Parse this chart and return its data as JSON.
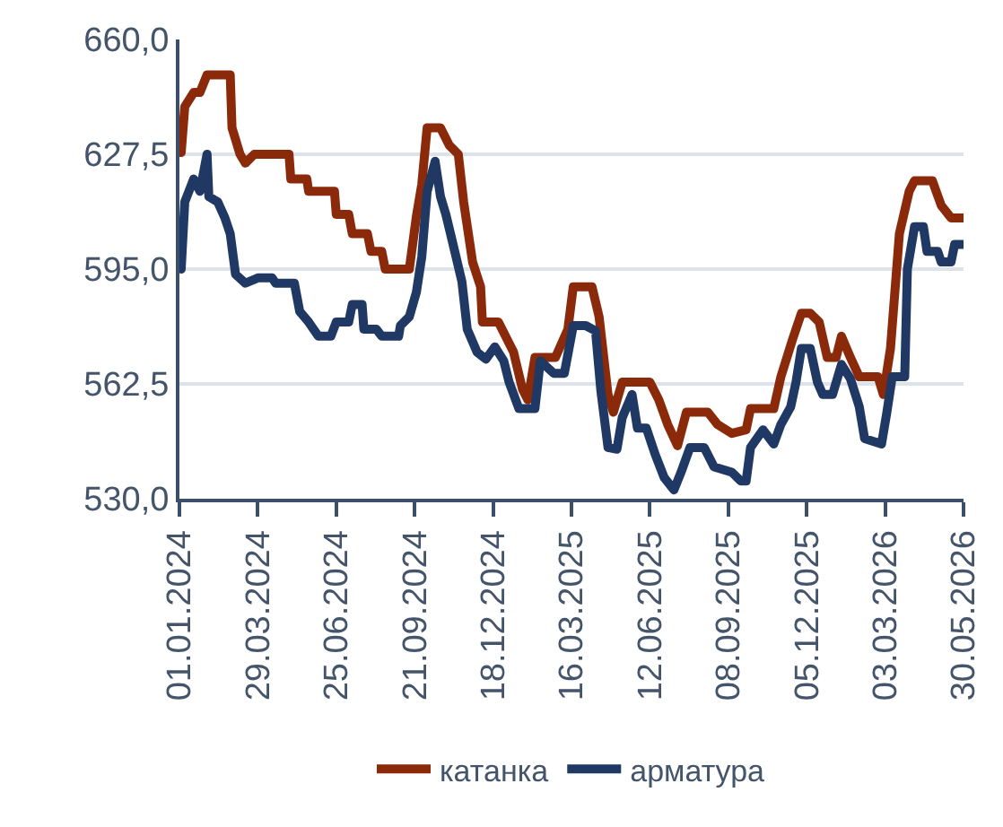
{
  "chart_data": {
    "type": "line",
    "xlim": [
      "2024-01-01",
      "2026-05-30"
    ],
    "xticks": [
      {
        "value": "2024-01-01",
        "label": "01.01.2024"
      },
      {
        "value": "2024-03-29",
        "label": "29.03.2024"
      },
      {
        "value": "2024-06-25",
        "label": "25.06.2024"
      },
      {
        "value": "2024-09-21",
        "label": "21.09.2024"
      },
      {
        "value": "2024-12-18",
        "label": "18.12.2024"
      },
      {
        "value": "2025-03-16",
        "label": "16.03.2025"
      },
      {
        "value": "2025-06-12",
        "label": "12.06.2025"
      },
      {
        "value": "2025-09-08",
        "label": "08.09.2025"
      },
      {
        "value": "2025-12-05",
        "label": "05.12.2025"
      },
      {
        "value": "2026-03-03",
        "label": "03.03.2026"
      },
      {
        "value": "2026-05-30",
        "label": "30.05.2026"
      }
    ],
    "ylim": [
      530,
      660
    ],
    "yticks": [
      {
        "value": 530,
        "label": "530,0"
      },
      {
        "value": 562.5,
        "label": "562,5"
      },
      {
        "value": 595,
        "label": "595,0"
      },
      {
        "value": 627.5,
        "label": "627,5"
      },
      {
        "value": 660,
        "label": "660,0"
      }
    ],
    "grid": "y",
    "legend": "bottom",
    "marker": "none",
    "line_style": "solid",
    "series": [
      {
        "name": "катанка",
        "color": "#8b2a0b",
        "x": [
          "2024-01-03",
          "2024-01-07",
          "2024-01-17",
          "2024-01-24",
          "2024-02-01",
          "2024-02-27",
          "2024-02-29",
          "2024-03-09",
          "2024-03-15",
          "2024-03-25",
          "2024-05-03",
          "2024-05-05",
          "2024-05-23",
          "2024-05-25",
          "2024-06-23",
          "2024-06-25",
          "2024-07-09",
          "2024-07-13",
          "2024-07-30",
          "2024-08-03",
          "2024-08-15",
          "2024-08-19",
          "2024-09-15",
          "2024-09-23",
          "2024-09-29",
          "2024-10-05",
          "2024-10-20",
          "2024-10-30",
          "2024-11-09",
          "2024-11-15",
          "2024-11-25",
          "2024-12-04",
          "2024-12-06",
          "2024-12-24",
          "2025-01-03",
          "2025-01-10",
          "2025-01-20",
          "2025-01-26",
          "2025-02-03",
          "2025-02-26",
          "2025-03-12",
          "2025-03-18",
          "2025-04-08",
          "2025-04-16",
          "2025-04-26",
          "2025-05-02",
          "2025-05-12",
          "2025-06-12",
          "2025-06-22",
          "2025-07-02",
          "2025-07-13",
          "2025-07-23",
          "2025-08-16",
          "2025-08-27",
          "2025-09-12",
          "2025-09-28",
          "2025-10-03",
          "2025-10-29",
          "2025-11-06",
          "2025-11-19",
          "2025-11-29",
          "2025-12-09",
          "2025-12-19",
          "2025-12-28",
          "2026-01-07",
          "2026-01-13",
          "2026-01-23",
          "2026-02-02",
          "2026-02-23",
          "2026-03-01",
          "2026-03-09",
          "2026-03-19",
          "2026-03-30",
          "2026-04-05",
          "2026-04-25",
          "2026-05-05",
          "2026-05-16",
          "2026-05-30"
        ],
        "values": [
          628,
          641,
          645,
          645,
          650,
          650,
          635,
          627.5,
          625,
          627.5,
          627.5,
          620.5,
          620.5,
          617,
          617,
          610.5,
          610.5,
          605,
          605,
          600,
          600,
          595,
          595,
          610,
          619,
          635,
          635,
          630,
          627.5,
          614,
          597,
          590,
          580,
          580,
          575,
          571.5,
          561,
          558,
          570,
          570,
          578,
          590,
          590,
          581.5,
          559.5,
          554.5,
          563,
          563,
          558,
          551,
          545,
          554.5,
          554.5,
          551,
          548.5,
          549.5,
          555.5,
          555.5,
          564.5,
          575,
          582.5,
          582.5,
          580,
          570,
          570,
          576,
          570,
          564.5,
          564.5,
          559.5,
          572.5,
          605,
          617,
          620,
          620,
          613,
          609.5,
          609.5
        ]
      },
      {
        "name": "арматура",
        "color": "#1f3864",
        "x": [
          "2024-01-03",
          "2024-01-07",
          "2024-01-17",
          "2024-01-24",
          "2024-02-01",
          "2024-02-03",
          "2024-02-13",
          "2024-02-21",
          "2024-02-27",
          "2024-03-04",
          "2024-03-15",
          "2024-03-29",
          "2024-04-14",
          "2024-04-18",
          "2024-05-09",
          "2024-05-15",
          "2024-05-25",
          "2024-06-05",
          "2024-06-19",
          "2024-06-25",
          "2024-07-09",
          "2024-07-13",
          "2024-07-24",
          "2024-07-26",
          "2024-08-09",
          "2024-08-15",
          "2024-09-03",
          "2024-09-05",
          "2024-09-15",
          "2024-09-23",
          "2024-09-29",
          "2024-10-05",
          "2024-10-14",
          "2024-10-20",
          "2024-10-26",
          "2024-11-05",
          "2024-11-13",
          "2024-11-19",
          "2024-11-30",
          "2024-12-10",
          "2024-12-20",
          "2024-12-30",
          "2025-01-05",
          "2025-01-16",
          "2025-02-03",
          "2025-02-09",
          "2025-02-24",
          "2025-03-08",
          "2025-03-18",
          "2025-04-01",
          "2025-04-12",
          "2025-04-18",
          "2025-04-26",
          "2025-05-06",
          "2025-05-12",
          "2025-05-23",
          "2025-05-29",
          "2025-06-08",
          "2025-06-18",
          "2025-06-28",
          "2025-07-09",
          "2025-07-17",
          "2025-07-27",
          "2025-08-12",
          "2025-08-23",
          "2025-09-12",
          "2025-09-22",
          "2025-09-28",
          "2025-10-03",
          "2025-10-17",
          "2025-10-29",
          "2025-11-06",
          "2025-11-17",
          "2025-11-23",
          "2025-11-29",
          "2025-12-09",
          "2025-12-17",
          "2025-12-23",
          "2026-01-03",
          "2026-01-13",
          "2026-01-23",
          "2026-02-02",
          "2026-02-08",
          "2026-02-27",
          "2026-03-05",
          "2026-03-11",
          "2026-03-25",
          "2026-03-28",
          "2026-04-05",
          "2026-04-15",
          "2026-04-19",
          "2026-05-01",
          "2026-05-05",
          "2026-05-16",
          "2026-05-20",
          "2026-05-30"
        ],
        "values": [
          595,
          614,
          620.5,
          617,
          627.5,
          615.5,
          614,
          609.5,
          605,
          593.5,
          591,
          592.5,
          592.5,
          591,
          591,
          583,
          580,
          576,
          576,
          580,
          580,
          585,
          585,
          578,
          578,
          576,
          576,
          579,
          581.5,
          588.5,
          598.5,
          617,
          625.5,
          615.5,
          610.5,
          600,
          591.5,
          578,
          571.5,
          569.5,
          573,
          569,
          563,
          555.5,
          555.5,
          569,
          565.5,
          565.5,
          579,
          579,
          577.5,
          560.5,
          544.5,
          544,
          553,
          559.5,
          550,
          550,
          542.5,
          536,
          532.5,
          537.5,
          544.5,
          544.5,
          539,
          537.5,
          535,
          535,
          544.5,
          549.5,
          545.5,
          551,
          556,
          563,
          572.5,
          572.5,
          563,
          559.5,
          559.5,
          568,
          564,
          556,
          547,
          545.5,
          554.5,
          564.5,
          564.5,
          595,
          607,
          607,
          600,
          600,
          597,
          597,
          602,
          602
        ]
      }
    ]
  }
}
